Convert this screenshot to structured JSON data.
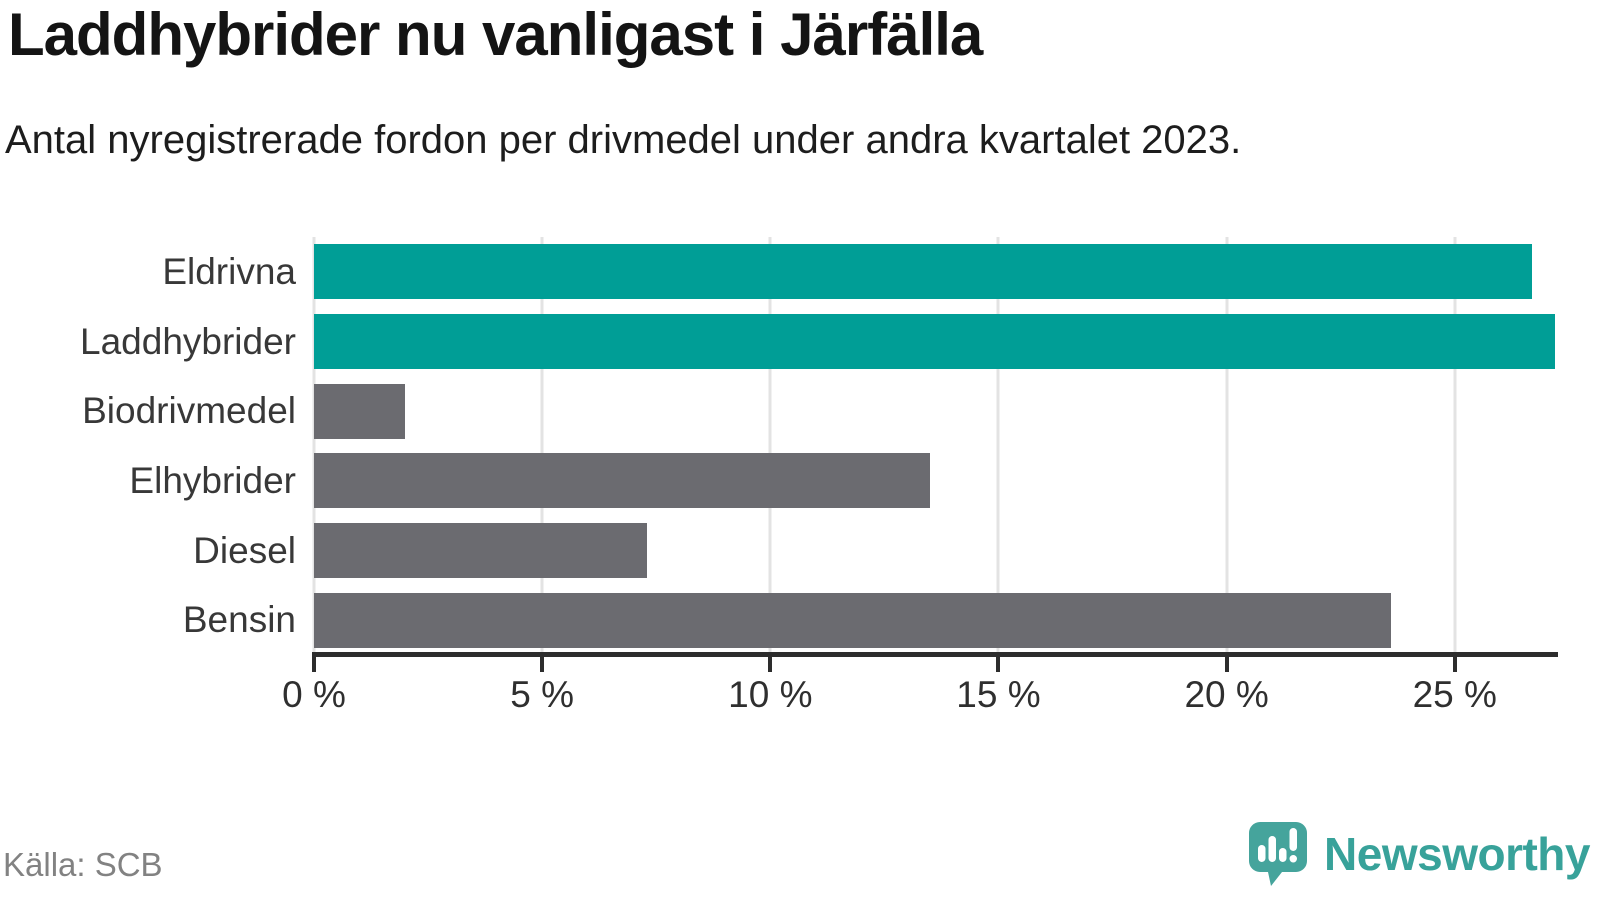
{
  "chart_data": {
    "type": "bar",
    "orientation": "horizontal",
    "title": "Laddhybrider nu vanligast i Järfälla",
    "subtitle": "Antal nyregistrerade fordon per drivmedel under andra kvartalet 2023.",
    "categories": [
      "Eldrivna",
      "Laddhybrider",
      "Biodrivmedel",
      "Elhybrider",
      "Diesel",
      "Bensin"
    ],
    "values": [
      26.7,
      27.2,
      2.0,
      13.5,
      7.3,
      23.6
    ],
    "unit": "%",
    "bar_colors": [
      "#009e96",
      "#009e96",
      "#6b6b70",
      "#6b6b70",
      "#6b6b70",
      "#6b6b70"
    ],
    "highlight_color": "#009e96",
    "default_color": "#6b6b70",
    "xlim": [
      0,
      27.24
    ],
    "xticks": [
      {
        "value": 0,
        "label": "0 %"
      },
      {
        "value": 5,
        "label": "5 %"
      },
      {
        "value": 10,
        "label": "10 %"
      },
      {
        "value": 15,
        "label": "15 %"
      },
      {
        "value": 20,
        "label": "20 %"
      },
      {
        "value": 25,
        "label": "25 %"
      }
    ],
    "grid": true,
    "legend": "none"
  },
  "footer": {
    "source": "Källa: SCB",
    "brand": "Newsworthy",
    "brand_color": "#38a29a"
  },
  "icons": {
    "logo": "newsworthy-speech-bubble-chart-icon"
  }
}
